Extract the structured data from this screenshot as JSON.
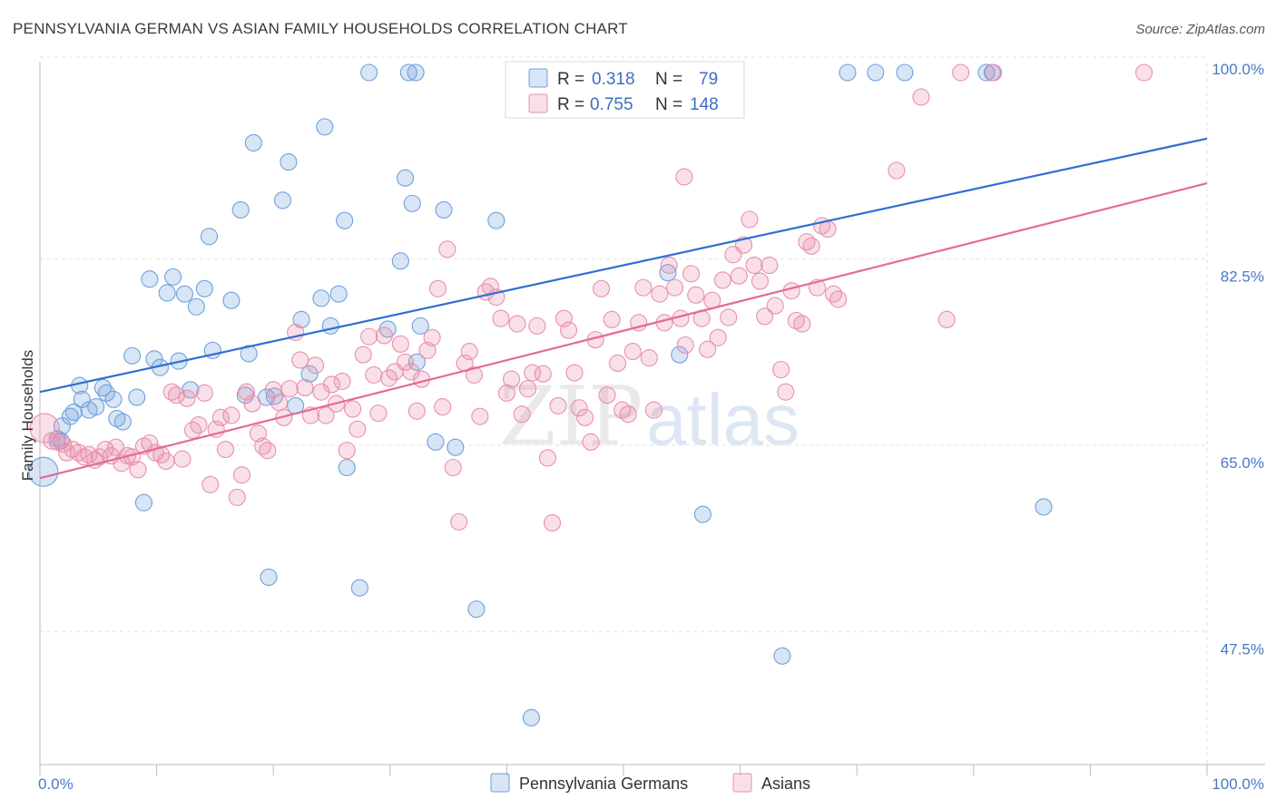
{
  "title": "PENNSYLVANIA GERMAN VS ASIAN FAMILY HOUSEHOLDS CORRELATION CHART",
  "source": "Source: ZipAtlas.com",
  "colors": {
    "blue": "#6fa0dc",
    "blue_fill": "rgba(111,160,220,0.28)",
    "blue_line": "#2e6fd1",
    "pink": "#e88fad",
    "pink_fill": "rgba(232,143,173,0.28)",
    "pink_line": "#e46a96"
  },
  "legend": {
    "rows": [
      {
        "r_label": "R =",
        "r_value": "0.318",
        "n_label": "N =",
        "n_value": "79"
      },
      {
        "r_label": "R =",
        "r_value": "0.755",
        "n_label": "N =",
        "n_value": "148"
      }
    ]
  },
  "bottom_legend": [
    "Pennsylvania Germans",
    "Asians"
  ],
  "watermark": {
    "zip": "ZIP",
    "atlas": "atlas"
  },
  "chart_data": {
    "type": "scatter",
    "title": "PENNSYLVANIA GERMAN VS ASIAN FAMILY HOUSEHOLDS CORRELATION CHART",
    "xlabel": "",
    "ylabel": "Family Households",
    "xlim": [
      0,
      100
    ],
    "ylim": [
      35,
      100
    ],
    "x_tick_labels": [
      "0.0%",
      "100.0%"
    ],
    "y_ticks": [
      47.5,
      65.0,
      82.5,
      100.0
    ],
    "y_tick_labels": [
      "47.5%",
      "65.0%",
      "82.5%",
      "100.0%"
    ],
    "grid": true,
    "legend_position": "top-center",
    "series": [
      {
        "name": "Pennsylvania Germans",
        "r": 0.318,
        "n": 79,
        "trend": {
          "x0": 0,
          "y0": 70.0,
          "x1": 100,
          "y1": 93.8
        },
        "points": [
          [
            0.3,
            62.5,
            "big"
          ],
          [
            1.5,
            65.6
          ],
          [
            1.8,
            65.4
          ],
          [
            1.9,
            66.8
          ],
          [
            2.6,
            67.7
          ],
          [
            2.9,
            68.1
          ],
          [
            3.4,
            70.6
          ],
          [
            3.6,
            69.3
          ],
          [
            4.2,
            68.3
          ],
          [
            4.8,
            68.6
          ],
          [
            5.4,
            70.4
          ],
          [
            5.7,
            69.9
          ],
          [
            6.3,
            69.3
          ],
          [
            6.6,
            67.5
          ],
          [
            7.1,
            67.2
          ],
          [
            7.9,
            73.4
          ],
          [
            8.3,
            69.5
          ],
          [
            8.9,
            59.6
          ],
          [
            9.4,
            80.6
          ],
          [
            9.8,
            73.1
          ],
          [
            10.3,
            72.3
          ],
          [
            10.9,
            79.3
          ],
          [
            11.4,
            80.8
          ],
          [
            11.9,
            72.9
          ],
          [
            12.4,
            79.2
          ],
          [
            12.9,
            70.2
          ],
          [
            13.4,
            78.0
          ],
          [
            14.1,
            79.7
          ],
          [
            14.5,
            84.6
          ],
          [
            14.8,
            73.9
          ],
          [
            16.4,
            78.6
          ],
          [
            17.2,
            87.1
          ],
          [
            17.6,
            69.7
          ],
          [
            17.9,
            73.6
          ],
          [
            18.3,
            93.4
          ],
          [
            19.4,
            69.5
          ],
          [
            19.6,
            52.6
          ],
          [
            20.1,
            69.6
          ],
          [
            20.8,
            88.0
          ],
          [
            21.3,
            91.6
          ],
          [
            21.9,
            68.7
          ],
          [
            22.4,
            76.8
          ],
          [
            23.1,
            71.7
          ],
          [
            24.1,
            78.8
          ],
          [
            24.4,
            94.9
          ],
          [
            24.9,
            76.2
          ],
          [
            25.6,
            79.2
          ],
          [
            26.1,
            86.1
          ],
          [
            26.3,
            62.9
          ],
          [
            27.4,
            51.6
          ],
          [
            28.2,
            100.0
          ],
          [
            29.8,
            75.9
          ],
          [
            30.9,
            82.3
          ],
          [
            31.3,
            90.1
          ],
          [
            31.6,
            100.0
          ],
          [
            31.9,
            87.7
          ],
          [
            32.3,
            72.8
          ],
          [
            32.6,
            76.2
          ],
          [
            33.9,
            65.3
          ],
          [
            34.6,
            87.1
          ],
          [
            35.6,
            64.8
          ],
          [
            37.4,
            49.6
          ],
          [
            39.1,
            86.1
          ],
          [
            42.1,
            39.4
          ],
          [
            43.1,
            100.0
          ],
          [
            46.3,
            100.0
          ],
          [
            50.1,
            100.0
          ],
          [
            50.6,
            100.0
          ],
          [
            53.8,
            81.2
          ],
          [
            54.8,
            73.5
          ],
          [
            56.8,
            58.5
          ],
          [
            63.6,
            45.2
          ],
          [
            69.2,
            100.0
          ],
          [
            74.1,
            100.0
          ],
          [
            81.1,
            100.0
          ],
          [
            81.6,
            100.0
          ],
          [
            86.0,
            59.2
          ],
          [
            71.6,
            100.0
          ],
          [
            32.2,
            100.0
          ]
        ]
      },
      {
        "name": "Asians",
        "r": 0.755,
        "n": 148,
        "trend": {
          "x0": 0,
          "y0": 61.9,
          "x1": 100,
          "y1": 89.6
        },
        "points": [
          [
            0.4,
            66.6,
            "big"
          ],
          [
            1.0,
            65.4
          ],
          [
            1.5,
            65.3
          ],
          [
            2.0,
            65.1
          ],
          [
            2.3,
            64.3
          ],
          [
            2.8,
            64.6
          ],
          [
            3.3,
            64.3
          ],
          [
            3.8,
            63.9
          ],
          [
            4.2,
            64.1
          ],
          [
            4.7,
            63.6
          ],
          [
            5.1,
            63.9
          ],
          [
            5.6,
            64.6
          ],
          [
            6.1,
            64.0
          ],
          [
            6.5,
            64.8
          ],
          [
            7.0,
            63.3
          ],
          [
            7.5,
            64.0
          ],
          [
            7.9,
            63.9
          ],
          [
            8.4,
            62.7
          ],
          [
            8.9,
            64.9
          ],
          [
            9.4,
            65.2
          ],
          [
            9.9,
            64.3
          ],
          [
            10.4,
            64.1
          ],
          [
            10.8,
            63.5
          ],
          [
            11.3,
            70.0
          ],
          [
            11.7,
            69.7
          ],
          [
            12.2,
            63.7
          ],
          [
            12.6,
            69.4
          ],
          [
            13.1,
            66.4
          ],
          [
            13.6,
            66.9
          ],
          [
            14.1,
            69.9
          ],
          [
            14.6,
            61.3
          ],
          [
            15.1,
            66.5
          ],
          [
            15.5,
            67.6
          ],
          [
            15.9,
            64.6
          ],
          [
            16.4,
            67.8
          ],
          [
            16.9,
            60.1
          ],
          [
            17.3,
            62.2
          ],
          [
            17.7,
            70.0
          ],
          [
            18.2,
            68.9
          ],
          [
            18.7,
            66.1
          ],
          [
            19.1,
            64.9
          ],
          [
            19.5,
            64.5
          ],
          [
            20.0,
            70.2
          ],
          [
            20.5,
            69.0
          ],
          [
            20.9,
            67.6
          ],
          [
            21.4,
            70.3
          ],
          [
            21.9,
            75.6
          ],
          [
            22.3,
            73.0
          ],
          [
            22.7,
            70.4
          ],
          [
            23.2,
            67.8
          ],
          [
            23.6,
            72.5
          ],
          [
            24.1,
            70.0
          ],
          [
            24.5,
            67.8
          ],
          [
            25.0,
            70.7
          ],
          [
            25.4,
            68.9
          ],
          [
            25.9,
            71.0
          ],
          [
            26.3,
            64.5
          ],
          [
            26.8,
            68.4
          ],
          [
            27.2,
            66.5
          ],
          [
            27.7,
            73.5
          ],
          [
            28.2,
            75.2
          ],
          [
            28.6,
            71.6
          ],
          [
            29.0,
            68.0
          ],
          [
            29.5,
            75.3
          ],
          [
            29.9,
            71.3
          ],
          [
            30.4,
            71.9
          ],
          [
            30.9,
            74.5
          ],
          [
            31.3,
            72.8
          ],
          [
            31.8,
            71.9
          ],
          [
            32.3,
            68.2
          ],
          [
            32.7,
            71.2
          ],
          [
            33.2,
            73.9
          ],
          [
            33.6,
            75.1
          ],
          [
            34.1,
            79.7
          ],
          [
            34.5,
            68.6
          ],
          [
            34.9,
            83.4
          ],
          [
            35.4,
            62.9
          ],
          [
            35.9,
            57.8
          ],
          [
            36.4,
            72.7
          ],
          [
            36.8,
            73.8
          ],
          [
            37.2,
            71.6
          ],
          [
            37.7,
            67.7
          ],
          [
            38.2,
            79.4
          ],
          [
            38.6,
            79.9
          ],
          [
            39.1,
            78.9
          ],
          [
            39.5,
            76.9
          ],
          [
            40.0,
            69.9
          ],
          [
            40.4,
            71.2
          ],
          [
            40.9,
            76.4
          ],
          [
            41.3,
            67.9
          ],
          [
            41.8,
            70.3
          ],
          [
            42.2,
            71.8
          ],
          [
            42.6,
            76.2
          ],
          [
            43.1,
            71.7
          ],
          [
            43.5,
            63.8
          ],
          [
            43.9,
            57.7
          ],
          [
            44.4,
            68.7
          ],
          [
            44.9,
            76.9
          ],
          [
            45.3,
            75.8
          ],
          [
            45.8,
            71.8
          ],
          [
            46.2,
            68.5
          ],
          [
            46.7,
            67.6
          ],
          [
            47.2,
            65.3
          ],
          [
            47.6,
            74.9
          ],
          [
            48.1,
            79.7
          ],
          [
            48.6,
            69.7
          ],
          [
            49.0,
            76.8
          ],
          [
            49.5,
            72.7
          ],
          [
            49.9,
            68.3
          ],
          [
            50.4,
            67.9
          ],
          [
            50.8,
            73.8
          ],
          [
            51.3,
            76.5
          ],
          [
            51.7,
            79.8
          ],
          [
            52.2,
            73.2
          ],
          [
            52.6,
            68.3
          ],
          [
            53.1,
            79.2
          ],
          [
            53.5,
            76.5
          ],
          [
            53.9,
            81.9
          ],
          [
            54.4,
            79.8
          ],
          [
            54.9,
            76.9
          ],
          [
            55.3,
            74.4
          ],
          [
            55.8,
            81.1
          ],
          [
            56.2,
            79.1
          ],
          [
            56.7,
            76.9
          ],
          [
            57.2,
            74.0
          ],
          [
            57.6,
            78.6
          ],
          [
            58.1,
            75.1
          ],
          [
            58.5,
            80.5
          ],
          [
            59.0,
            77.0
          ],
          [
            59.4,
            82.9
          ],
          [
            59.9,
            80.9
          ],
          [
            60.3,
            83.8
          ],
          [
            60.8,
            86.2
          ],
          [
            61.2,
            81.9
          ],
          [
            61.7,
            80.4
          ],
          [
            62.1,
            77.1
          ],
          [
            62.5,
            81.9
          ],
          [
            63.0,
            78.1
          ],
          [
            63.5,
            72.1
          ],
          [
            63.9,
            70.0
          ],
          [
            64.4,
            79.5
          ],
          [
            64.8,
            76.7
          ],
          [
            65.3,
            76.4
          ],
          [
            65.7,
            84.1
          ],
          [
            66.1,
            83.7
          ],
          [
            66.6,
            79.8
          ],
          [
            67.0,
            85.6
          ],
          [
            67.5,
            85.3
          ],
          [
            68.0,
            79.2
          ],
          [
            68.4,
            78.7
          ],
          [
            73.4,
            90.8
          ],
          [
            55.2,
            90.2
          ],
          [
            77.7,
            76.8
          ],
          [
            78.9,
            100.0
          ],
          [
            81.7,
            100.0
          ],
          [
            94.6,
            100.0
          ],
          [
            75.5,
            97.7
          ]
        ]
      }
    ]
  }
}
